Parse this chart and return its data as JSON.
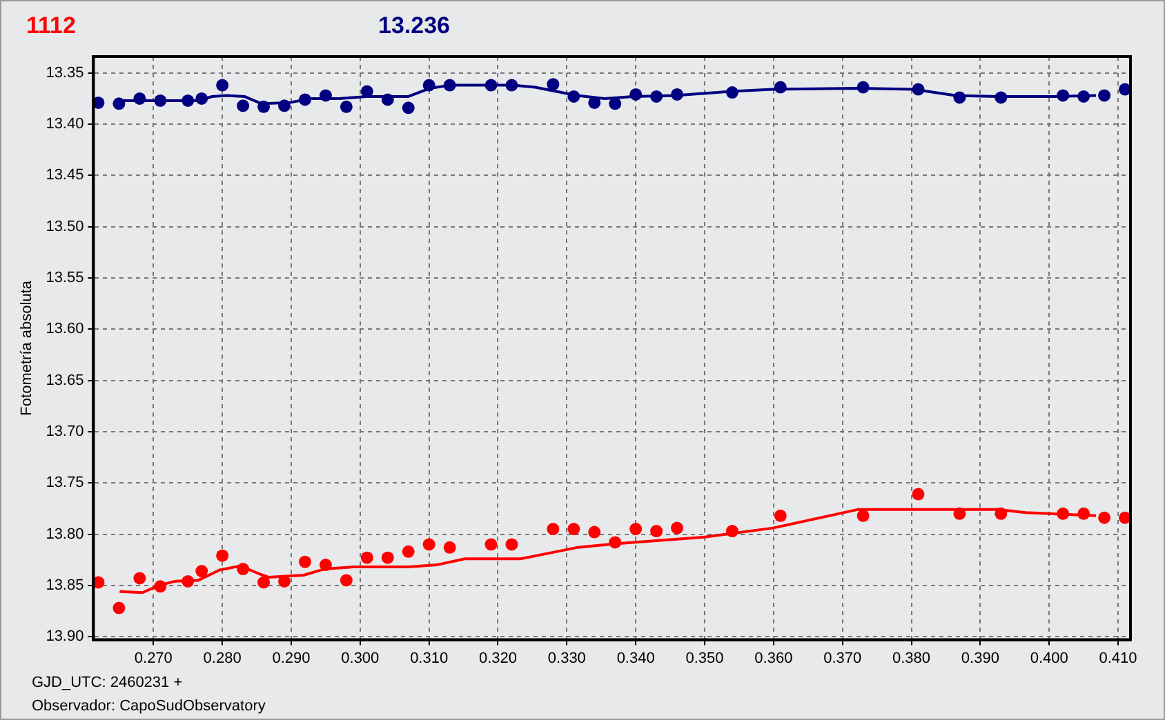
{
  "chart_data": {
    "type": "scatter",
    "ylabel": "Fotometría absoluta",
    "annotations": [
      "GJD_UTC: 2460231 +",
      "Observador: CapoSudObservatory"
    ],
    "xlim": [
      0.2613,
      0.4118
    ],
    "ylim": [
      13.903,
      13.334
    ],
    "xticks": [
      {
        "value": 0.27,
        "label": "0.270"
      },
      {
        "value": 0.28,
        "label": "0.280"
      },
      {
        "value": 0.29,
        "label": "0.290"
      },
      {
        "value": 0.3,
        "label": "0.300"
      },
      {
        "value": 0.31,
        "label": "0.310"
      },
      {
        "value": 0.32,
        "label": "0.320"
      },
      {
        "value": 0.33,
        "label": "0.330"
      },
      {
        "value": 0.34,
        "label": "0.340"
      },
      {
        "value": 0.35,
        "label": "0.350"
      },
      {
        "value": 0.36,
        "label": "0.360"
      },
      {
        "value": 0.37,
        "label": "0.370"
      },
      {
        "value": 0.38,
        "label": "0.380"
      },
      {
        "value": 0.39,
        "label": "0.390"
      },
      {
        "value": 0.4,
        "label": "0.400"
      },
      {
        "value": 0.41,
        "label": "0.410"
      }
    ],
    "yticks": [
      13.35,
      {
        "value": 13.4,
        "label": "13.40"
      },
      13.45,
      {
        "value": 13.5,
        "label": "13.50"
      },
      13.55,
      {
        "value": 13.6,
        "label": "13.60"
      },
      13.65,
      {
        "value": 13.7,
        "label": "13.70"
      },
      13.75,
      {
        "value": 13.8,
        "label": "13.80"
      },
      13.85,
      {
        "value": 13.9,
        "label": "13.90"
      }
    ],
    "grid": true,
    "legend": "top left",
    "series": [
      {
        "name": "1112",
        "marker": "circle",
        "color": "#ff0000",
        "x": [
          0.262,
          0.265,
          0.268,
          0.271,
          0.275,
          0.277,
          0.28,
          0.283,
          0.286,
          0.289,
          0.292,
          0.295,
          0.298,
          0.301,
          0.304,
          0.307,
          0.31,
          0.313,
          0.319,
          0.322,
          0.328,
          0.331,
          0.334,
          0.337,
          0.34,
          0.343,
          0.346,
          0.354,
          0.361,
          0.373,
          0.381,
          0.387,
          0.393,
          0.402,
          0.405,
          0.408,
          0.411
        ],
        "values": [
          13.847,
          13.872,
          13.843,
          13.851,
          13.846,
          13.836,
          13.821,
          13.834,
          13.847,
          13.846,
          13.827,
          13.83,
          13.845,
          13.823,
          13.823,
          13.817,
          13.81,
          13.813,
          13.81,
          13.81,
          13.795,
          13.795,
          13.798,
          13.808,
          13.795,
          13.797,
          13.794,
          13.797,
          13.782,
          13.782,
          13.761,
          13.78,
          13.78,
          13.78,
          13.78,
          13.784,
          13.784
        ]
      },
      {
        "type": "line",
        "color": "#ff0000",
        "x": [
          0.2651,
          0.2684,
          0.2708,
          0.2731,
          0.2765,
          0.2796,
          0.2826,
          0.2851,
          0.2867,
          0.2918,
          0.2948,
          0.2989,
          0.307,
          0.3111,
          0.3152,
          0.3233,
          0.3315,
          0.3376,
          0.3498,
          0.3599,
          0.3722,
          0.3925,
          0.3966,
          0.4068
        ],
        "values": [
          13.856,
          13.857,
          13.85,
          13.846,
          13.845,
          13.835,
          13.831,
          13.838,
          13.842,
          13.84,
          13.834,
          13.832,
          13.832,
          13.83,
          13.824,
          13.824,
          13.813,
          13.809,
          13.803,
          13.794,
          13.776,
          13.776,
          13.779,
          13.782
        ]
      },
      {
        "name": "13.236",
        "marker": "circle",
        "color": "#000080",
        "x": [
          0.262,
          0.265,
          0.268,
          0.271,
          0.275,
          0.277,
          0.28,
          0.283,
          0.286,
          0.289,
          0.292,
          0.295,
          0.298,
          0.301,
          0.304,
          0.307,
          0.31,
          0.313,
          0.319,
          0.322,
          0.328,
          0.331,
          0.334,
          0.337,
          0.34,
          0.343,
          0.346,
          0.354,
          0.361,
          0.373,
          0.381,
          0.387,
          0.393,
          0.402,
          0.405,
          0.408,
          0.411
        ],
        "values": [
          13.379,
          13.38,
          13.375,
          13.377,
          13.377,
          13.375,
          13.362,
          13.382,
          13.383,
          13.382,
          13.376,
          13.372,
          13.383,
          13.368,
          13.376,
          13.384,
          13.362,
          13.362,
          13.362,
          13.362,
          13.361,
          13.373,
          13.379,
          13.38,
          13.371,
          13.373,
          13.371,
          13.369,
          13.364,
          13.364,
          13.366,
          13.374,
          13.374,
          13.372,
          13.373,
          13.372,
          13.366
        ]
      },
      {
        "type": "line",
        "color": "#000080",
        "x": [
          0.2649,
          0.2765,
          0.2785,
          0.2806,
          0.2832,
          0.2857,
          0.2897,
          0.2928,
          0.2969,
          0.3009,
          0.307,
          0.3101,
          0.3131,
          0.3223,
          0.3254,
          0.3315,
          0.3355,
          0.3396,
          0.3457,
          0.3538,
          0.3599,
          0.3722,
          0.3803,
          0.3864,
          0.3925,
          0.4006,
          0.4068
        ],
        "values": [
          13.377,
          13.377,
          13.373,
          13.372,
          13.373,
          13.38,
          13.379,
          13.375,
          13.375,
          13.373,
          13.373,
          13.365,
          13.362,
          13.362,
          13.364,
          13.372,
          13.375,
          13.373,
          13.372,
          13.368,
          13.366,
          13.365,
          13.366,
          13.372,
          13.373,
          13.373,
          13.372
        ]
      }
    ]
  }
}
